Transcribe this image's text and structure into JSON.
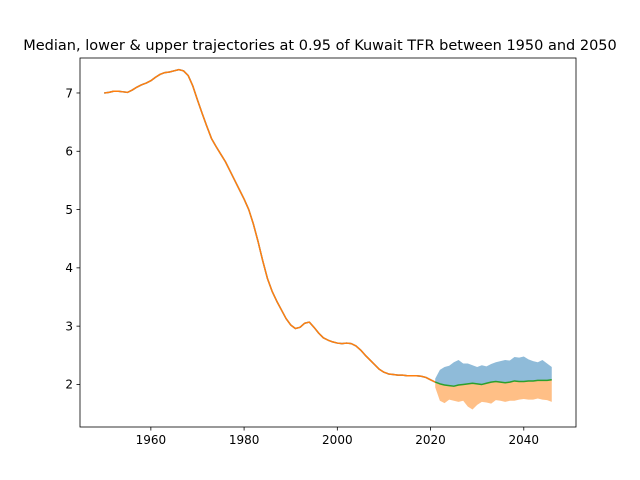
{
  "chart_data": {
    "type": "line",
    "title": "Median, lower & upper trajectories at 0.95 of Kuwait TFR between 1950 and 2050",
    "xlabel": "",
    "ylabel": "",
    "xlim": [
      1944.8,
      2051.2
    ],
    "ylim": [
      1.27,
      7.6
    ],
    "xticks": [
      1960,
      1980,
      2000,
      2020,
      2040
    ],
    "yticks": [
      2,
      3,
      4,
      5,
      6,
      7
    ],
    "grid": false,
    "legend": "none",
    "colors": {
      "historical": "#1f77b4",
      "historical_overlay": "#ff7f0e",
      "median": "#2ca02c",
      "upper_band": "#1f77b4",
      "lower_band": "#ff7f0e"
    },
    "series": [
      {
        "role": "historical",
        "x": [
          1950,
          1951,
          1952,
          1953,
          1954,
          1955,
          1956,
          1957,
          1958,
          1959,
          1960,
          1961,
          1962,
          1963,
          1964,
          1965,
          1966,
          1967,
          1968,
          1969,
          1970,
          1971,
          1972,
          1973,
          1974,
          1975,
          1976,
          1977,
          1978,
          1979,
          1980,
          1981,
          1982,
          1983,
          1984,
          1985,
          1986,
          1987,
          1988,
          1989,
          1990,
          1991,
          1992,
          1993,
          1994,
          1995,
          1996,
          1997,
          1998,
          1999,
          2000,
          2001,
          2002,
          2003,
          2004,
          2005,
          2006,
          2007,
          2008,
          2009,
          2010,
          2011,
          2012,
          2013,
          2014,
          2015,
          2016,
          2017,
          2018,
          2019,
          2020,
          2021
        ],
        "y": [
          7.0,
          7.01,
          7.03,
          7.03,
          7.02,
          7.01,
          7.05,
          7.1,
          7.14,
          7.17,
          7.21,
          7.27,
          7.32,
          7.35,
          7.36,
          7.38,
          7.4,
          7.38,
          7.3,
          7.12,
          6.88,
          6.65,
          6.43,
          6.22,
          6.08,
          5.95,
          5.82,
          5.66,
          5.5,
          5.34,
          5.18,
          5.0,
          4.75,
          4.45,
          4.12,
          3.82,
          3.6,
          3.43,
          3.28,
          3.13,
          3.02,
          2.96,
          2.98,
          3.05,
          3.07,
          2.98,
          2.88,
          2.8,
          2.76,
          2.73,
          2.71,
          2.7,
          2.71,
          2.7,
          2.66,
          2.59,
          2.5,
          2.42,
          2.34,
          2.26,
          2.21,
          2.18,
          2.17,
          2.16,
          2.16,
          2.15,
          2.15,
          2.15,
          2.14,
          2.12,
          2.08,
          2.04
        ]
      },
      {
        "role": "median",
        "x": [
          2021,
          2022,
          2023,
          2024,
          2025,
          2026,
          2027,
          2028,
          2029,
          2030,
          2031,
          2032,
          2033,
          2034,
          2035,
          2036,
          2037,
          2038,
          2039,
          2040,
          2041,
          2042,
          2043,
          2044,
          2045,
          2046
        ],
        "y": [
          2.04,
          2.01,
          1.99,
          1.98,
          1.97,
          1.99,
          2.0,
          2.01,
          2.02,
          2.01,
          2.0,
          2.02,
          2.04,
          2.05,
          2.04,
          2.03,
          2.04,
          2.06,
          2.05,
          2.05,
          2.06,
          2.06,
          2.07,
          2.07,
          2.07,
          2.08
        ]
      }
    ],
    "bands": [
      {
        "role": "upper",
        "x": [
          2021,
          2022,
          2023,
          2024,
          2025,
          2026,
          2027,
          2028,
          2029,
          2030,
          2031,
          2032,
          2033,
          2034,
          2035,
          2036,
          2037,
          2038,
          2039,
          2040,
          2041,
          2042,
          2043,
          2044,
          2045,
          2046
        ],
        "low": [
          2.04,
          2.01,
          1.99,
          1.98,
          1.97,
          1.99,
          2.0,
          2.01,
          2.02,
          2.01,
          2.0,
          2.02,
          2.04,
          2.05,
          2.04,
          2.03,
          2.04,
          2.06,
          2.05,
          2.05,
          2.06,
          2.06,
          2.07,
          2.07,
          2.07,
          2.08
        ],
        "high": [
          2.1,
          2.25,
          2.3,
          2.32,
          2.38,
          2.42,
          2.36,
          2.36,
          2.33,
          2.3,
          2.33,
          2.31,
          2.35,
          2.38,
          2.4,
          2.42,
          2.41,
          2.47,
          2.46,
          2.48,
          2.43,
          2.4,
          2.38,
          2.42,
          2.36,
          2.3
        ]
      },
      {
        "role": "lower",
        "x": [
          2021,
          2022,
          2023,
          2024,
          2025,
          2026,
          2027,
          2028,
          2029,
          2030,
          2031,
          2032,
          2033,
          2034,
          2035,
          2036,
          2037,
          2038,
          2039,
          2040,
          2041,
          2042,
          2043,
          2044,
          2045,
          2046
        ],
        "low": [
          1.95,
          1.72,
          1.68,
          1.74,
          1.72,
          1.7,
          1.72,
          1.62,
          1.57,
          1.65,
          1.7,
          1.69,
          1.67,
          1.73,
          1.72,
          1.7,
          1.72,
          1.72,
          1.74,
          1.75,
          1.74,
          1.74,
          1.76,
          1.74,
          1.73,
          1.7
        ],
        "high": [
          2.04,
          2.01,
          1.99,
          1.98,
          1.97,
          1.99,
          2.0,
          2.01,
          2.02,
          2.01,
          2.0,
          2.02,
          2.04,
          2.05,
          2.04,
          2.03,
          2.04,
          2.06,
          2.05,
          2.05,
          2.06,
          2.06,
          2.07,
          2.07,
          2.07,
          2.08
        ]
      }
    ]
  }
}
